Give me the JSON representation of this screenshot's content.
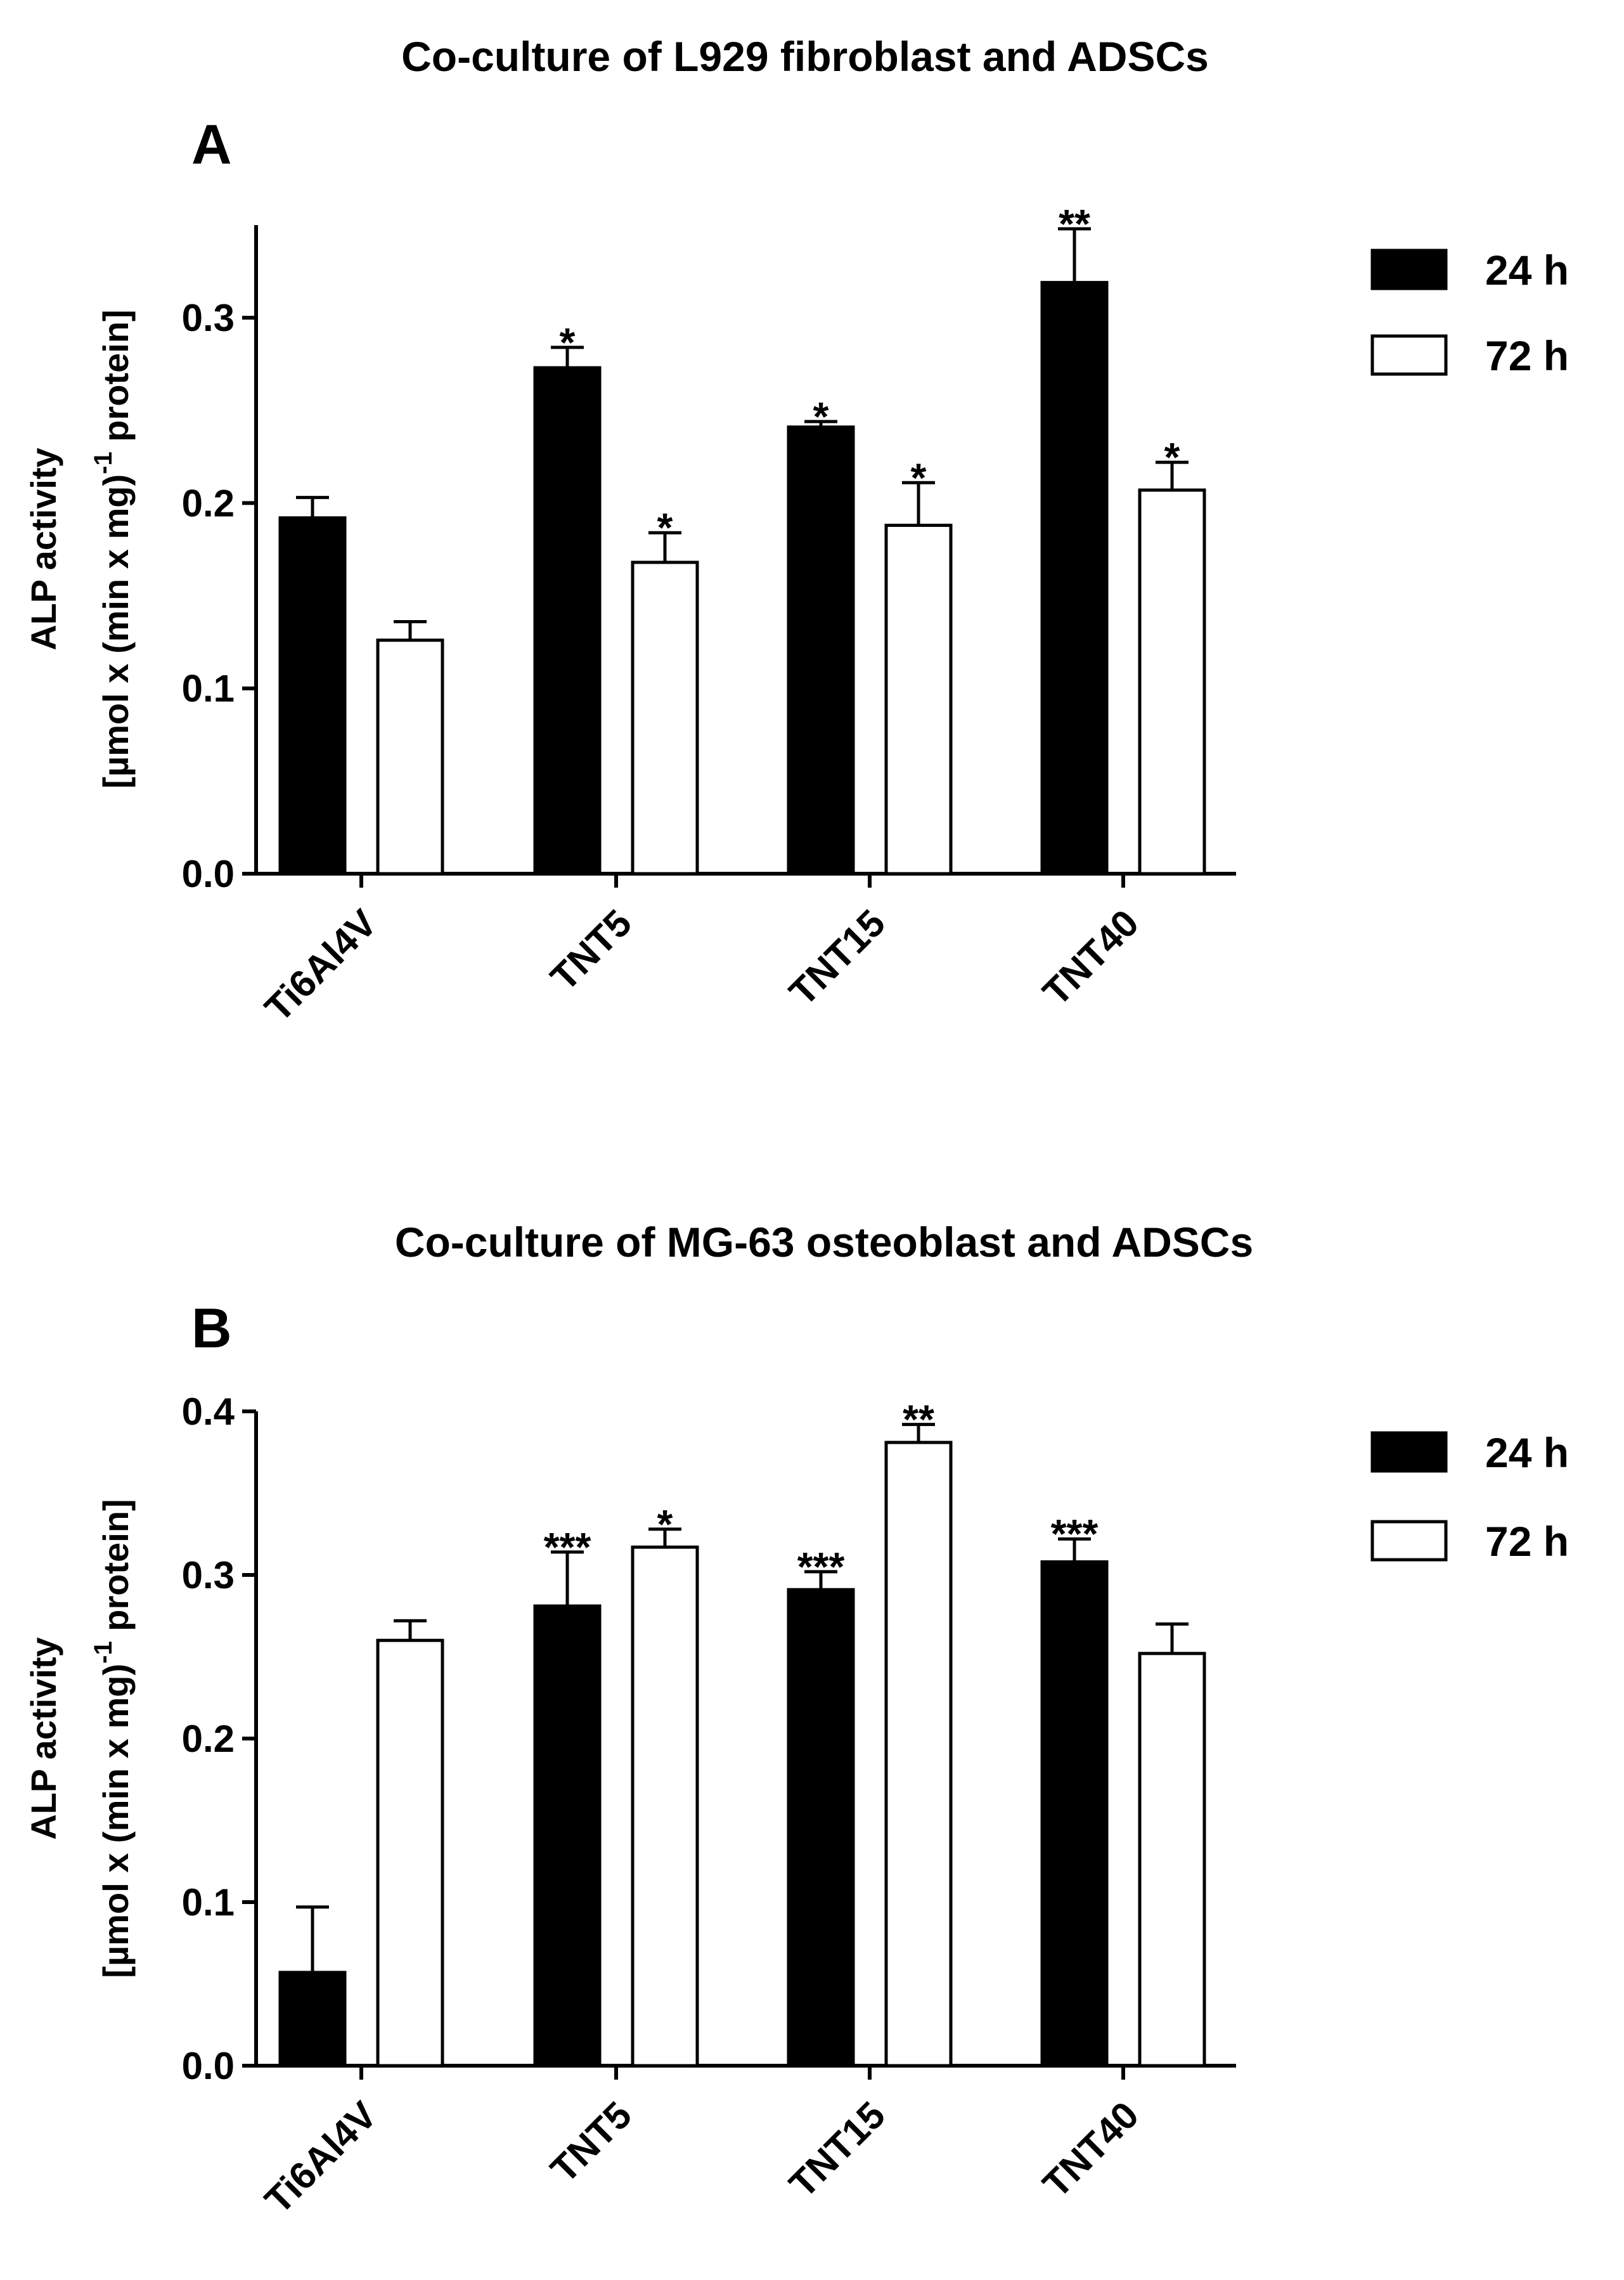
{
  "chart_data": [
    {
      "type": "bar",
      "panel": "A",
      "title": "Co-culture of L929 fibroblast and ADSCs",
      "ylabel_line1": "ALP activity",
      "ylabel_line2_pre": "[µmol x (min x mg)",
      "ylabel_line2_sup": "-1",
      "ylabel_line2_post": " protein]",
      "xlabel": "",
      "ylim": [
        0,
        0.35
      ],
      "yticks": [
        0.0,
        0.1,
        0.2,
        0.3
      ],
      "ytick_labels": [
        "0.0",
        "0.1",
        "0.2",
        "0.3"
      ],
      "categories": [
        "Ti6Al4V",
        "TNT5",
        "TNT15",
        "TNT40"
      ],
      "series": [
        {
          "name": "24 h",
          "fill": "#000000",
          "values": [
            0.192,
            0.273,
            0.241,
            0.319
          ],
          "errors": [
            0.011,
            0.011,
            0.003,
            0.029
          ],
          "sig": [
            "",
            "*",
            "*",
            "**"
          ]
        },
        {
          "name": "72 h",
          "fill": "#ffffff",
          "values": [
            0.126,
            0.168,
            0.188,
            0.207
          ],
          "errors": [
            0.01,
            0.016,
            0.023,
            0.015
          ],
          "sig": [
            "",
            "*",
            "*",
            "*"
          ]
        }
      ]
    },
    {
      "type": "bar",
      "panel": "B",
      "title": "Co-culture of MG-63 osteoblast and ADSCs",
      "ylabel_line1": "ALP activity",
      "ylabel_line2_pre": "[µmol x (min x mg)",
      "ylabel_line2_sup": "-1",
      "ylabel_line2_post": " protein]",
      "xlabel": "",
      "ylim": [
        0,
        0.4
      ],
      "yticks": [
        0.0,
        0.1,
        0.2,
        0.3,
        0.4
      ],
      "ytick_labels": [
        "0.0",
        "0.1",
        "0.2",
        "0.3",
        "0.4"
      ],
      "categories": [
        "Ti6Al4V",
        "TNT5",
        "TNT15",
        "TNT40"
      ],
      "series": [
        {
          "name": "24 h",
          "fill": "#000000",
          "values": [
            0.057,
            0.281,
            0.291,
            0.308
          ],
          "errors": [
            0.04,
            0.033,
            0.011,
            0.014
          ],
          "sig": [
            "",
            "***",
            "***",
            "***"
          ]
        },
        {
          "name": "72 h",
          "fill": "#ffffff",
          "values": [
            0.26,
            0.317,
            0.381,
            0.252
          ],
          "errors": [
            0.012,
            0.011,
            0.011,
            0.018
          ],
          "sig": [
            "",
            "*",
            "**",
            ""
          ]
        }
      ]
    }
  ]
}
